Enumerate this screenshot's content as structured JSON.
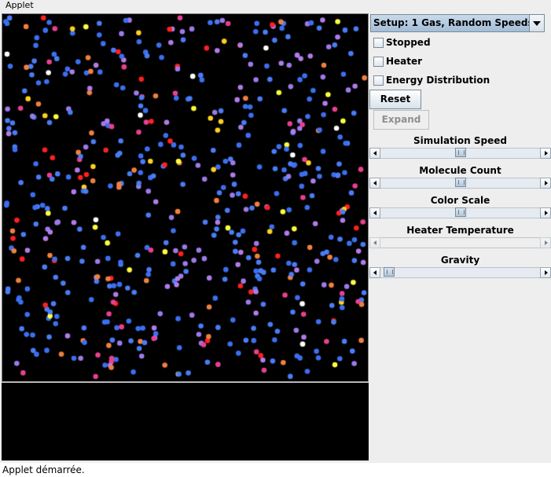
{
  "menubar": {
    "title": "Applet"
  },
  "panel": {
    "setup": "Setup: 1 Gas, Random Speeds",
    "checkboxes": [
      {
        "label": "Stopped",
        "checked": false
      },
      {
        "label": "Heater",
        "checked": false
      },
      {
        "label": "Energy Distribution",
        "checked": false
      }
    ],
    "reset_label": "Reset",
    "expand_label": "Expand",
    "sliders": [
      {
        "label": "Simulation Speed",
        "value": 0.5,
        "enabled": true
      },
      {
        "label": "Molecule Count",
        "value": 0.5,
        "enabled": true
      },
      {
        "label": "Color Scale",
        "value": 0.5,
        "enabled": true
      },
      {
        "label": "Heater Temperature",
        "value": 0.0,
        "enabled": false
      },
      {
        "label": "Gravity",
        "value": 0.02,
        "enabled": true
      }
    ]
  },
  "simulation": {
    "background": "#000000",
    "molecule_colors": [
      "#3c6ff0",
      "#4a7cf5",
      "#9d7ae8",
      "#b07ce8",
      "#e84090",
      "#f08040",
      "#ff2020",
      "#ffd020",
      "#ffff40",
      "#ffffff"
    ]
  },
  "status": {
    "text": "Applet démarrée."
  }
}
